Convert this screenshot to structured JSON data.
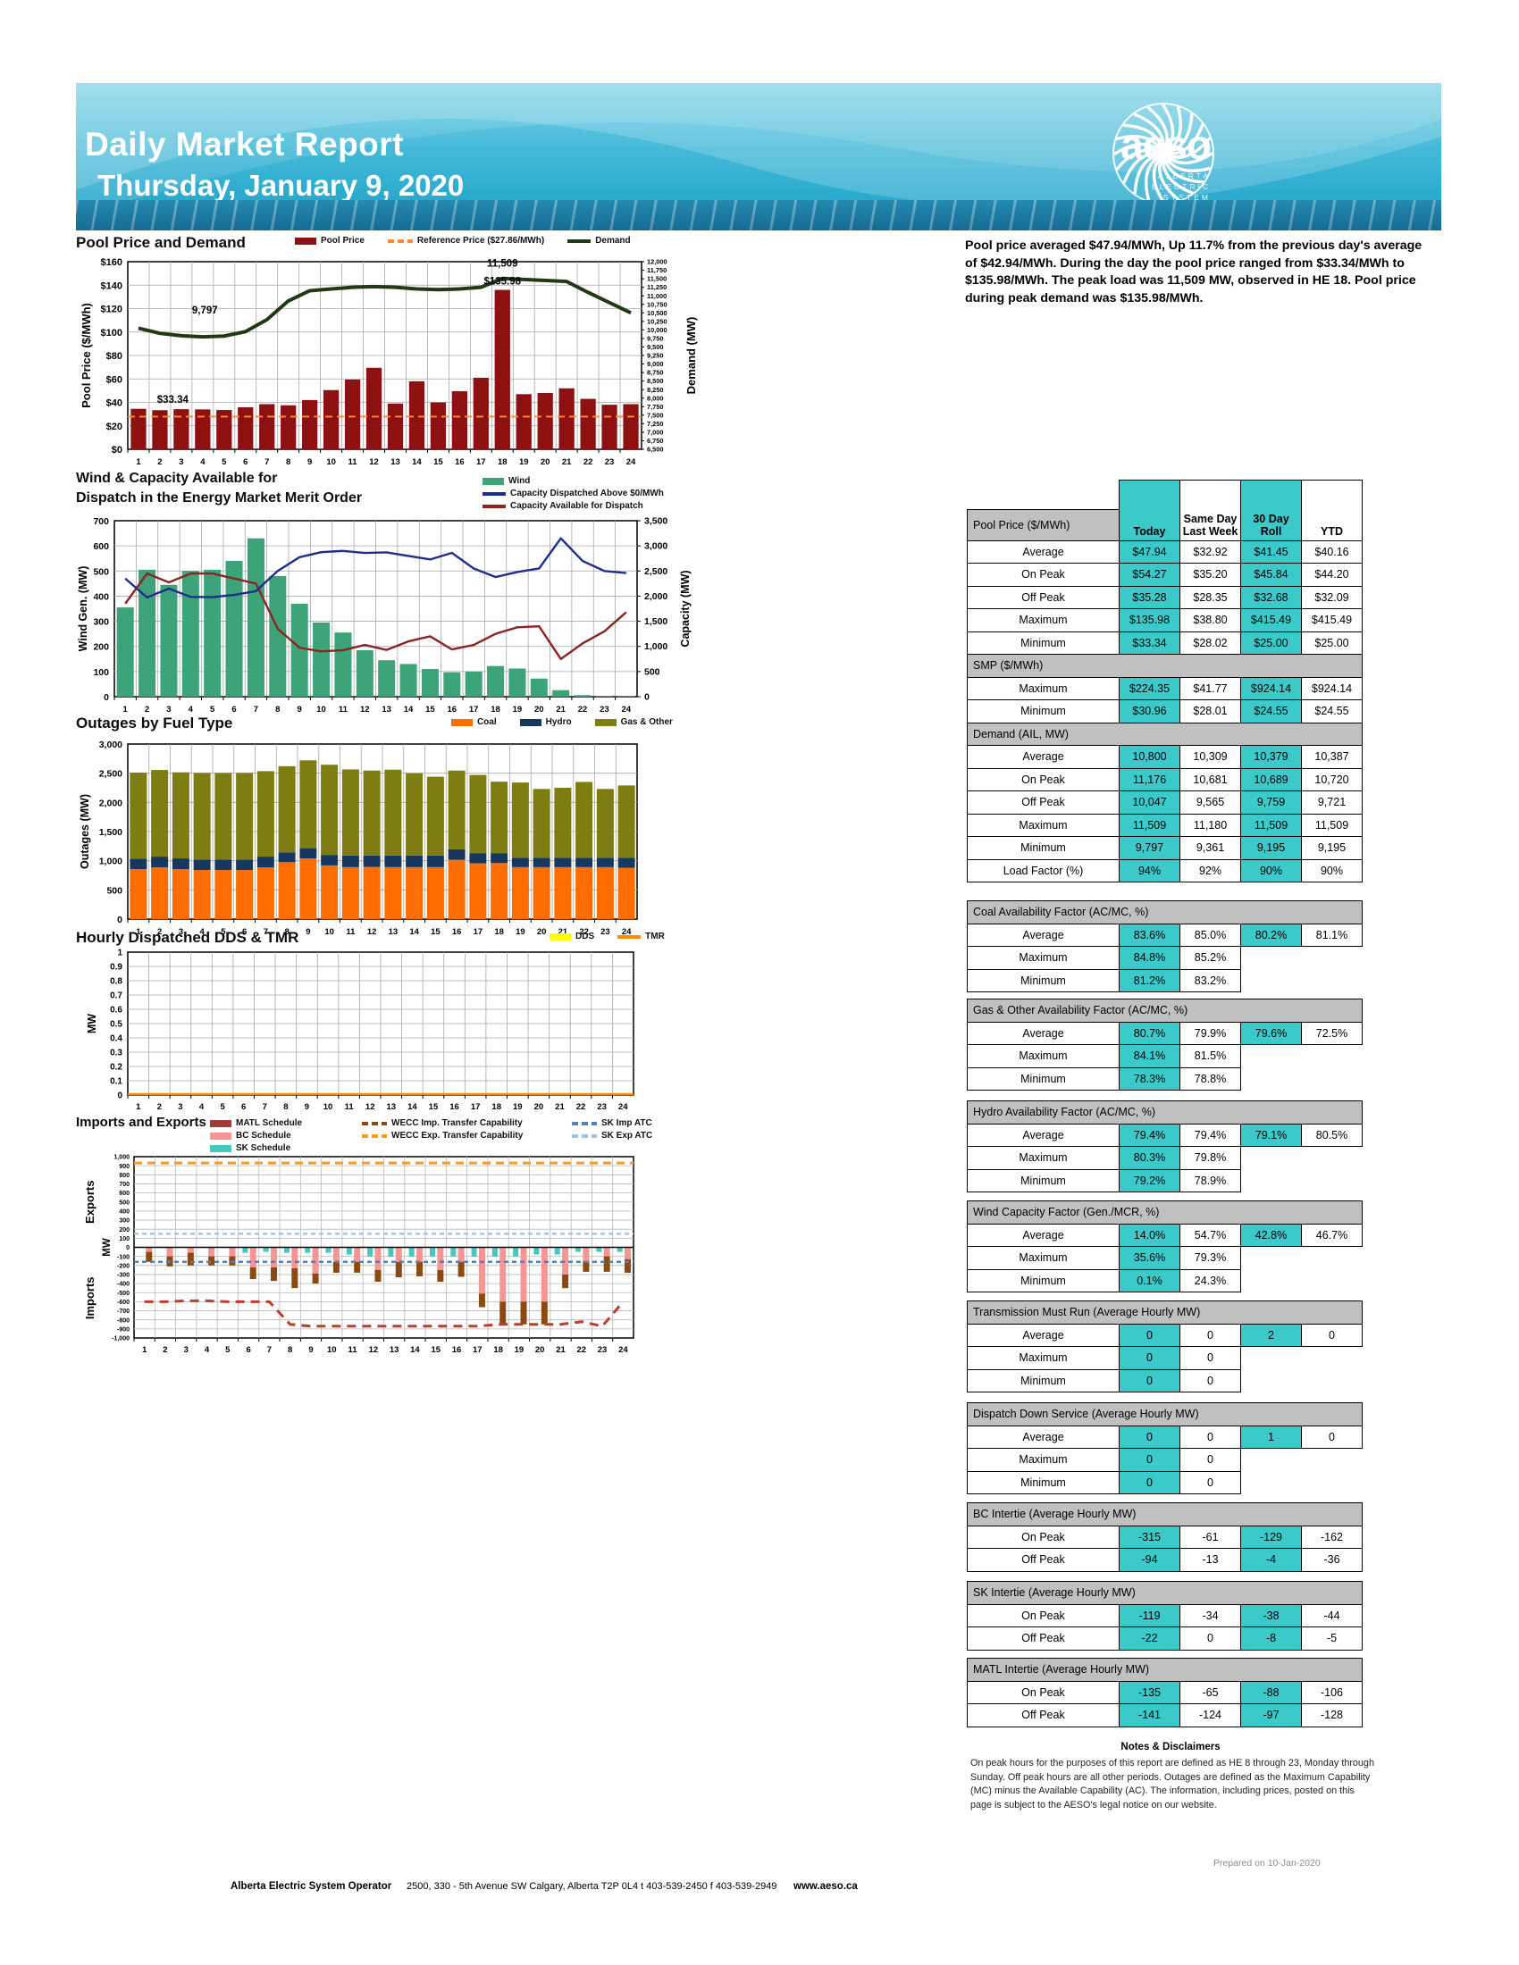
{
  "header": {
    "title": "Daily Market Report",
    "date": "Thursday, January 9, 2020",
    "logo": {
      "name": "aeso",
      "sub0": "ALBERTA",
      "sub1": "ELECTRIC",
      "sub2": "SYSTEM",
      "sub3": "OPERATOR"
    }
  },
  "summary": "Pool price averaged $47.94/MWh, Up 11.7% from the previous day's average of $42.94/MWh.  During the day the pool price ranged from $33.34/MWh to $135.98/MWh.  The peak load was 11,509 MW, observed in HE 18.  Pool price during peak demand was $135.98/MWh.",
  "columns": [
    "Today",
    "Same Day Last Week",
    "30 Day Roll",
    "YTD"
  ],
  "tables": [
    {
      "id": "main",
      "title": "Pool Price ($/MWh)",
      "has_column_header": true,
      "sections": [
        {
          "title": null,
          "rows": [
            [
              "Average",
              "$47.94",
              "$32.92",
              "$41.45",
              "$40.16"
            ],
            [
              "On Peak",
              "$54.27",
              "$35.20",
              "$45.84",
              "$44.20"
            ],
            [
              "Off Peak",
              "$35.28",
              "$28.35",
              "$32.68",
              "$32.09"
            ],
            [
              "Maximum",
              "$135.98",
              "$38.80",
              "$415.49",
              "$415.49"
            ],
            [
              "Minimum",
              "$33.34",
              "$28.02",
              "$25.00",
              "$25.00"
            ]
          ]
        },
        {
          "title": "SMP ($/MWh)",
          "rows": [
            [
              "Maximum",
              "$224.35",
              "$41.77",
              "$924.14",
              "$924.14"
            ],
            [
              "Minimum",
              "$30.96",
              "$28.01",
              "$24.55",
              "$24.55"
            ]
          ]
        },
        {
          "title": "Demand (AIL, MW)",
          "rows": [
            [
              "Average",
              "10,800",
              "10,309",
              "10,379",
              "10,387"
            ],
            [
              "On Peak",
              "11,176",
              "10,681",
              "10,689",
              "10,720"
            ],
            [
              "Off Peak",
              "10,047",
              "9,565",
              "9,759",
              "9,721"
            ],
            [
              "Maximum",
              "11,509",
              "11,180",
              "11,509",
              "11,509"
            ],
            [
              "Minimum",
              "9,797",
              "9,361",
              "9,195",
              "9,195"
            ],
            [
              "Load Factor (%)",
              "94%",
              "92%",
              "90%",
              "90%"
            ]
          ]
        }
      ]
    },
    {
      "id": "coal",
      "title": "Coal Availability Factor (AC/MC, %)",
      "rows": [
        [
          "Average",
          "83.6%",
          "85.0%",
          "80.2%",
          "81.1%"
        ],
        [
          "Maximum",
          "84.8%",
          "85.2%",
          null,
          null
        ],
        [
          "Minimum",
          "81.2%",
          "83.2%",
          null,
          null
        ]
      ]
    },
    {
      "id": "gas",
      "title": "Gas & Other Availability Factor (AC/MC, %)",
      "rows": [
        [
          "Average",
          "80.7%",
          "79.9%",
          "79.6%",
          "72.5%"
        ],
        [
          "Maximum",
          "84.1%",
          "81.5%",
          null,
          null
        ],
        [
          "Minimum",
          "78.3%",
          "78.8%",
          null,
          null
        ]
      ]
    },
    {
      "id": "hydro",
      "title": "Hydro Availability Factor  (AC/MC, %)",
      "rows": [
        [
          "Average",
          "79.4%",
          "79.4%",
          "79.1%",
          "80.5%"
        ],
        [
          "Maximum",
          "80.3%",
          "79.8%",
          null,
          null
        ],
        [
          "Minimum",
          "79.2%",
          "78.9%",
          null,
          null
        ]
      ]
    },
    {
      "id": "windcf",
      "title": "Wind Capacity Factor (Gen./MCR, %)",
      "rows": [
        [
          "Average",
          "14.0%",
          "54.7%",
          "42.8%",
          "46.7%"
        ],
        [
          "Maximum",
          "35.6%",
          "79.3%",
          null,
          null
        ],
        [
          "Minimum",
          "0.1%",
          "24.3%",
          null,
          null
        ]
      ]
    },
    {
      "id": "tmr",
      "title": "Transmission Must Run (Average Hourly MW)",
      "rows": [
        [
          "Average",
          "0",
          "0",
          "2",
          "0"
        ],
        [
          "Maximum",
          "0",
          "0",
          null,
          null
        ],
        [
          "Minimum",
          "0",
          "0",
          null,
          null
        ]
      ]
    },
    {
      "id": "dds",
      "title": "Dispatch Down Service (Average Hourly MW)",
      "rows": [
        [
          "Average",
          "0",
          "0",
          "1",
          "0"
        ],
        [
          "Maximum",
          "0",
          "0",
          null,
          null
        ],
        [
          "Minimum",
          "0",
          "0",
          null,
          null
        ]
      ]
    },
    {
      "id": "bc",
      "title": "BC Intertie (Average Hourly MW)",
      "rows": [
        [
          "On Peak",
          "-315",
          "-61",
          "-129",
          "-162"
        ],
        [
          "Off Peak",
          "-94",
          "-13",
          "-4",
          "-36"
        ]
      ]
    },
    {
      "id": "sk",
      "title": "SK Intertie (Average Hourly MW)",
      "rows": [
        [
          "On Peak",
          "-119",
          "-34",
          "-38",
          "-44"
        ],
        [
          "Off Peak",
          "-22",
          "0",
          "-8",
          "-5"
        ]
      ]
    },
    {
      "id": "matl",
      "title": "MATL Intertie (Average Hourly MW)",
      "rows": [
        [
          "On Peak",
          "-135",
          "-65",
          "-88",
          "-106"
        ],
        [
          "Off Peak",
          "-141",
          "-124",
          "-97",
          "-128"
        ]
      ]
    }
  ],
  "notes": {
    "title": "Notes & Disclaimers",
    "body": "On peak hours for the purposes of this report are defined as HE 8 through 23, Monday through Sunday.  Off peak hours are all other periods.  Outages are defined as the Maximum Capability (MC) minus the Available Capability (AC). The information, including prices, posted on this page is subject to the AESO's legal notice on our website.",
    "prepared": "Prepared on 10-Jan-2020"
  },
  "footer": {
    "org": "Alberta Electric System Operator",
    "address": "2500, 330 - 5th Avenue SW  Calgary, Alberta T2P 0L4  t 403-539-2450 f 403-539-2949",
    "site": "www.aeso.ca"
  },
  "chart_data": [
    {
      "id": "pool",
      "type": "bar",
      "title": "Pool Price and Demand",
      "legend": [
        {
          "label": "Pool Price",
          "color": "#8e1111",
          "style": "bar"
        },
        {
          "label": "Reference Price ($27.86/MWh)",
          "color": "#ff8b33",
          "style": "dash"
        },
        {
          "label": "Demand",
          "color": "#1f3a14",
          "style": "line"
        }
      ],
      "left": {
        "title": "Pool Price ($/MWh)",
        "min": 0,
        "max": 160,
        "step": 20,
        "prefix": "$"
      },
      "right": {
        "title": "Demand (MW)",
        "min": 6500,
        "max": 12000,
        "step": 250
      },
      "hours": [
        1,
        2,
        3,
        4,
        5,
        6,
        7,
        8,
        9,
        10,
        11,
        12,
        13,
        14,
        15,
        16,
        17,
        18,
        19,
        20,
        21,
        22,
        23,
        24
      ],
      "pool_price": [
        34.5,
        33.34,
        34.2,
        34.0,
        33.5,
        35.8,
        38.5,
        37.5,
        42,
        50.5,
        59.5,
        69.5,
        39,
        58,
        40,
        49.5,
        61,
        135.98,
        47,
        48,
        52,
        43,
        38,
        38.5
      ],
      "reference_price": 27.86,
      "demand": [
        10050,
        9900,
        9830,
        9797,
        9820,
        9950,
        10300,
        10850,
        11150,
        11200,
        11250,
        11270,
        11250,
        11200,
        11180,
        11200,
        11250,
        11509,
        11480,
        11450,
        11420,
        11100,
        10800,
        10500
      ],
      "colors": {
        "bar": "#8e1111",
        "demand": "#1f3a14",
        "reference": "#ff8b33"
      },
      "annotations": [
        {
          "text": "$33.34",
          "hour": 2.6,
          "value": 33.34,
          "axis": "left",
          "dy": -8
        },
        {
          "text": "9,797",
          "hour": 4.1,
          "value": 9797,
          "axis": "right",
          "dy": -26
        },
        {
          "text": "11,509",
          "hour": 18,
          "value": 11509,
          "axis": "right",
          "dy": -13
        },
        {
          "text": "$135.98",
          "hour": 18,
          "value": 11509,
          "axis": "right",
          "dy": 7
        }
      ]
    },
    {
      "id": "wind",
      "type": "bar",
      "title": "Wind & Capacity Available for Dispatch in the Energy Market Merit Order",
      "title_line1": "Wind & Capacity Available for",
      "title_line2": "Dispatch in the Energy Market Merit Order",
      "legend": [
        {
          "label": "Wind",
          "color": "#3da379",
          "style": "bar"
        },
        {
          "label": "Capacity Dispatched Above $0/MWh",
          "color": "#1f2d8f",
          "style": "line"
        },
        {
          "label": "Capacity Available for Dispatch",
          "color": "#8c2424",
          "style": "line"
        }
      ],
      "left": {
        "title": "Wind Gen. (MW)",
        "min": 0,
        "max": 700,
        "step": 100
      },
      "right": {
        "title": "Capacity (MW)",
        "min": 0,
        "max": 3500,
        "step": 500
      },
      "hours": [
        1,
        2,
        3,
        4,
        5,
        6,
        7,
        8,
        9,
        10,
        11,
        12,
        13,
        14,
        15,
        16,
        17,
        18,
        19,
        20,
        21,
        22,
        23,
        24
      ],
      "wind_gen": [
        355,
        505,
        445,
        500,
        505,
        540,
        630,
        480,
        370,
        295,
        255,
        185,
        145,
        130,
        110,
        97,
        100,
        122,
        112,
        72,
        26,
        6,
        2,
        3
      ],
      "capacity_dispatched": [
        2350,
        1975,
        2150,
        1985,
        1980,
        2025,
        2100,
        2500,
        2775,
        2875,
        2900,
        2860,
        2870,
        2800,
        2730,
        2860,
        2550,
        2380,
        2480,
        2550,
        3150,
        2700,
        2500,
        2460
      ],
      "capacity_available": [
        1850,
        2450,
        2275,
        2450,
        2450,
        2350,
        2250,
        1350,
        975,
        900,
        925,
        1030,
        930,
        1100,
        1200,
        940,
        1030,
        1250,
        1380,
        1400,
        750,
        1060,
        1300,
        1680
      ],
      "colors": {
        "bar": "#3da379",
        "dispatched": "#1f2d8f",
        "available": "#8c2424"
      }
    },
    {
      "id": "outages",
      "type": "bar",
      "title": "Outages by Fuel Type",
      "legend": [
        {
          "label": "Coal",
          "color": "#ff6d00",
          "style": "bar"
        },
        {
          "label": "Hydro",
          "color": "#17375e",
          "style": "bar"
        },
        {
          "label": "Gas & Other",
          "color": "#7d7d12",
          "style": "bar"
        }
      ],
      "left": {
        "title": "Outages (MW)",
        "min": 0,
        "max": 3000,
        "step": 500
      },
      "hours": [
        1,
        2,
        3,
        4,
        5,
        6,
        7,
        8,
        9,
        10,
        11,
        12,
        13,
        14,
        15,
        16,
        17,
        18,
        19,
        20,
        21,
        22,
        23,
        24
      ],
      "series": [
        {
          "name": "Coal",
          "color": "#ff6d00",
          "values": [
            855,
            885,
            855,
            840,
            840,
            840,
            885,
            975,
            1040,
            920,
            890,
            895,
            890,
            890,
            890,
            1015,
            955,
            960,
            890,
            890,
            890,
            890,
            890,
            880
          ]
        },
        {
          "name": "Hydro",
          "color": "#17375e",
          "values": [
            180,
            185,
            185,
            180,
            180,
            180,
            185,
            170,
            175,
            180,
            200,
            195,
            200,
            200,
            200,
            180,
            175,
            170,
            160,
            160,
            160,
            160,
            160,
            170
          ]
        },
        {
          "name": "Gas & Other",
          "color": "#7d7d12",
          "values": [
            1475,
            1485,
            1475,
            1485,
            1485,
            1485,
            1465,
            1475,
            1505,
            1545,
            1475,
            1455,
            1470,
            1410,
            1350,
            1350,
            1340,
            1225,
            1290,
            1180,
            1200,
            1300,
            1180,
            1240
          ]
        }
      ]
    },
    {
      "id": "ddstmr",
      "type": "line",
      "title": "Hourly Dispatched DDS & TMR",
      "legend": [
        {
          "label": "DDS",
          "color": "#ffff00",
          "style": "bar"
        },
        {
          "label": "TMR",
          "color": "#ff8c00",
          "style": "line"
        }
      ],
      "left": {
        "title": "MW",
        "min": 0,
        "max": 1,
        "step": 0.1
      },
      "hours": [
        1,
        2,
        3,
        4,
        5,
        6,
        7,
        8,
        9,
        10,
        11,
        12,
        13,
        14,
        15,
        16,
        17,
        18,
        19,
        20,
        21,
        22,
        23,
        24
      ],
      "dds": [
        0,
        0,
        0,
        0,
        0,
        0,
        0,
        0,
        0,
        0,
        0,
        0,
        0,
        0,
        0,
        0,
        0,
        0,
        0,
        0,
        0,
        0,
        0,
        0
      ],
      "tmr": [
        0,
        0,
        0,
        0,
        0,
        0,
        0,
        0,
        0,
        0,
        0,
        0,
        0,
        0,
        0,
        0,
        0,
        0,
        0,
        0,
        0,
        0,
        0,
        0
      ],
      "colors": {
        "dds": "#ffff00",
        "tmr": "#ff8c00"
      }
    },
    {
      "id": "imports",
      "type": "bar",
      "title": "Imports and Exports",
      "legend_col1": [
        {
          "label": "MATL Schedule",
          "color": "#9e3b3b",
          "style": "bar"
        },
        {
          "label": "BC Schedule",
          "color": "#f79494",
          "style": "bar"
        },
        {
          "label": "SK Schedule",
          "color": "#45c8c0",
          "style": "bar"
        }
      ],
      "legend_col2": [
        {
          "label": "WECC Imp. Transfer Capability",
          "color": "#8a4a10",
          "style": "dash"
        },
        {
          "label": "WECC Exp. Transfer Capability",
          "color": "#ff9921",
          "style": "dash"
        }
      ],
      "legend_col3": [
        {
          "label": "SK Imp ATC",
          "color": "#4f81bd",
          "style": "dash"
        },
        {
          "label": "SK Exp ATC",
          "color": "#9dc3e6",
          "style": "dash"
        }
      ],
      "axis": {
        "min": -1000,
        "max": 1000,
        "step": 100,
        "top_label": "Exports",
        "mid_label": "MW",
        "bottom_label": "Imports"
      },
      "hours": [
        1,
        2,
        3,
        4,
        5,
        6,
        7,
        8,
        9,
        10,
        11,
        12,
        13,
        14,
        15,
        16,
        17,
        18,
        19,
        20,
        21,
        22,
        23,
        24
      ],
      "sk_schedule": [
        0,
        0,
        0,
        0,
        0,
        -60,
        -50,
        -60,
        -60,
        -60,
        -80,
        -100,
        -100,
        -100,
        -100,
        -100,
        -100,
        -100,
        -100,
        -80,
        -80,
        -50,
        -50,
        -50
      ],
      "bc_schedule": [
        -50,
        -100,
        -60,
        -100,
        -100,
        -220,
        -220,
        -230,
        -290,
        -160,
        -160,
        -250,
        -160,
        -160,
        -250,
        -160,
        -510,
        -600,
        -600,
        -600,
        -300,
        -150,
        -100,
        -130
      ],
      "matl_schedule": [
        -110,
        -110,
        -140,
        -100,
        -100,
        -130,
        -150,
        -220,
        -110,
        -120,
        -120,
        -130,
        -170,
        -160,
        -130,
        -165,
        -150,
        -250,
        -250,
        -250,
        -150,
        -120,
        -170,
        -150
      ],
      "wecc_imp_capability": [
        -600,
        -600,
        -590,
        -590,
        -600,
        -600,
        -600,
        -850,
        -870,
        -870,
        -870,
        -870,
        -870,
        -870,
        -870,
        -870,
        -870,
        -850,
        -850,
        -850,
        -850,
        -820,
        -870,
        -600
      ],
      "wecc_exp_capability": 930,
      "sk_imp_atc": -160,
      "sk_exp_atc": 150,
      "colors": {
        "sk": "#45c8c0",
        "bc": "#f79494",
        "matl": "#8a4a10",
        "wecc_imp": "#c03a2e",
        "wecc_exp": "#ff9921",
        "sk_imp": "#4f81bd",
        "sk_exp": "#9dc3e6"
      }
    }
  ]
}
